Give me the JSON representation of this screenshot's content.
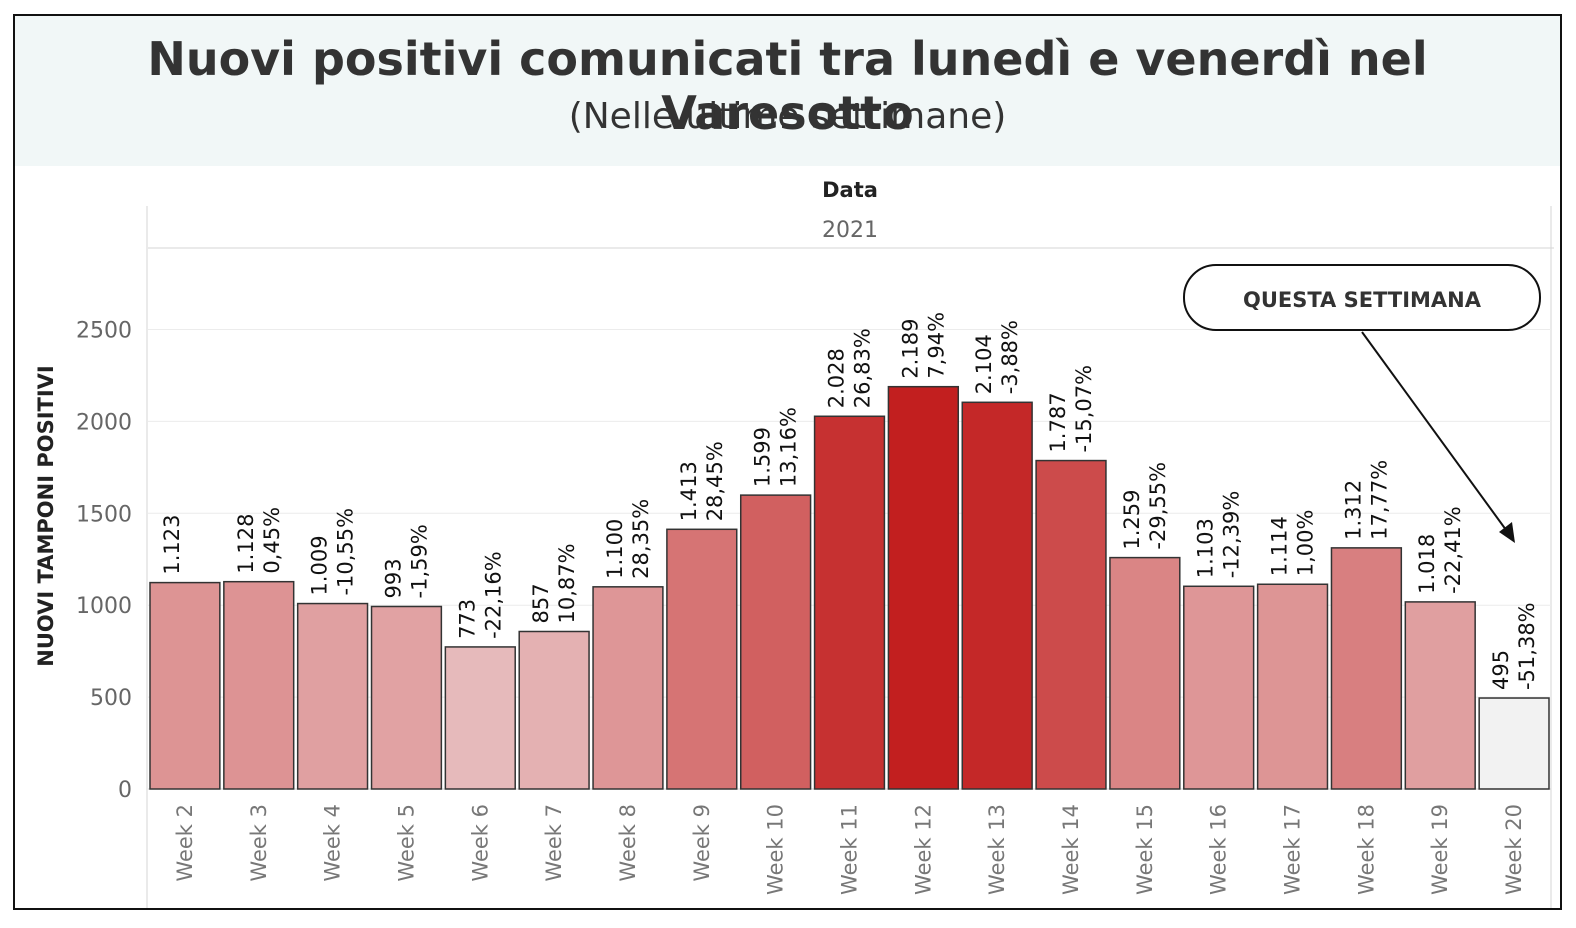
{
  "chart_data": {
    "type": "bar",
    "title": "Nuovi positivi comunicati tra lunedì e venerdì nel Varesotto",
    "subtitle": "(Nelle ultime settimane)",
    "column_header": "Data",
    "year": "2021",
    "ylabel": "NUOVI TAMPONI POSITIVI",
    "ylim": [
      0,
      2900
    ],
    "yticks": [
      0,
      500,
      1000,
      1500,
      2000,
      2500
    ],
    "grid": true,
    "categories": [
      "Week 2",
      "Week 3",
      "Week 4",
      "Week 5",
      "Week 6",
      "Week 7",
      "Week 8",
      "Week 9",
      "Week 10",
      "Week 11",
      "Week 12",
      "Week 13",
      "Week 14",
      "Week 15",
      "Week 16",
      "Week 17",
      "Week 18",
      "Week 19",
      "Week 20"
    ],
    "values": [
      1123,
      1128,
      1009,
      993,
      773,
      857,
      1100,
      1413,
      1599,
      2028,
      2189,
      2104,
      1787,
      1259,
      1103,
      1114,
      1312,
      1018,
      495
    ],
    "value_labels": [
      "1.123",
      "1.128",
      "1.009",
      "993",
      "773",
      "857",
      "1.100",
      "1.413",
      "1.599",
      "2.028",
      "2.189",
      "2.104",
      "1.787",
      "1.259",
      "1.103",
      "1.114",
      "1.312",
      "1.018",
      "495"
    ],
    "pct_labels": [
      "",
      "0,45%",
      "-10,55%",
      "-1,59%",
      "-22,16%",
      "10,87%",
      "28,35%",
      "28,45%",
      "13,16%",
      "26,83%",
      "7,94%",
      "-3,88%",
      "-15,07%",
      "-29,55%",
      "-12,39%",
      "1,00%",
      "17,77%",
      "-22,41%",
      "-51,38%"
    ],
    "colors": {
      "low": "#e8c2c3",
      "high": "#c21f1f",
      "current_week": "#f2f2f2",
      "bar_outline": "#333333"
    },
    "annotation": {
      "text": "QUESTA SETTIMANA",
      "target": "Week 20"
    }
  }
}
